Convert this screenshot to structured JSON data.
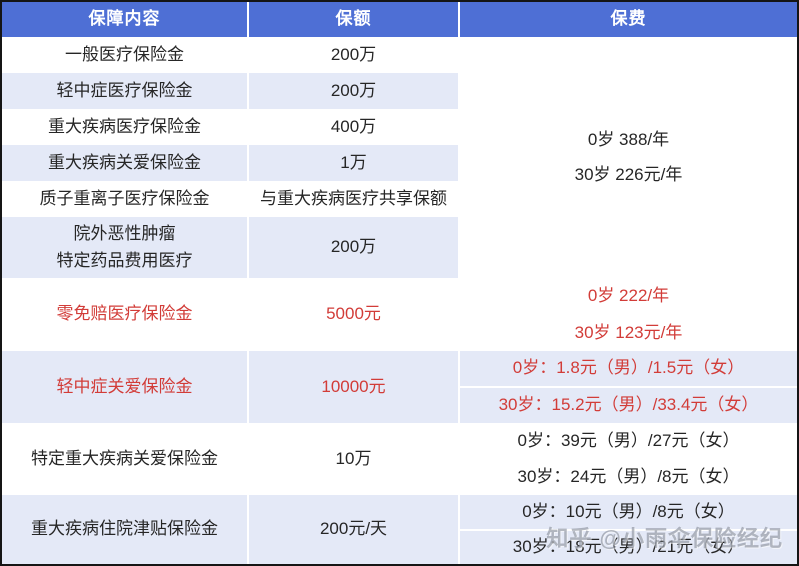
{
  "colors": {
    "header_bg": "#4E6FD5",
    "row_alt_bg": "#E4E9F7",
    "red_text": "#D23C38",
    "black_text": "#262626"
  },
  "table": {
    "headers": [
      "保障内容",
      "保额",
      "保费"
    ],
    "rows": [
      {
        "name": "一般医疗保险金",
        "amount": "200万"
      },
      {
        "name": "轻中症医疗保险金",
        "amount": "200万"
      },
      {
        "name": "重大疾病医疗保险金",
        "amount": "400万"
      },
      {
        "name": "重大疾病关爱保险金",
        "amount": "1万"
      },
      {
        "name": "质子重离子医疗保险金",
        "amount": "与重大疾病医疗共享保额"
      },
      {
        "name": "院外恶性肿瘤\n特定药品费用医疗",
        "amount": "200万"
      },
      {
        "name": "零免赔医疗保险金",
        "amount": "5000元"
      },
      {
        "name": "轻中症关爱保险金",
        "amount": "10000元"
      },
      {
        "name": "特定重大疾病关爱保险金",
        "amount": "10万"
      },
      {
        "name": "重大疾病住院津贴保险金",
        "amount": "200元/天"
      }
    ],
    "premium_merged": [
      "0岁 388/年",
      "30岁 226元/年"
    ],
    "premium_rows": {
      "r7": [
        "0岁 222/年",
        "30岁 123元/年"
      ],
      "r8": [
        "0岁：1.8元（男）/1.5元（女）",
        "30岁：15.2元（男）/33.4元（女）"
      ],
      "r9": [
        "0岁：39元（男）/27元（女）",
        "30岁：24元（男）/8元（女）"
      ],
      "r10": [
        "0岁：10元（男）/8元（女）",
        "30岁：18元（男）/21元（女）"
      ]
    }
  },
  "watermark": "知乎 @小雨伞保险经纪"
}
